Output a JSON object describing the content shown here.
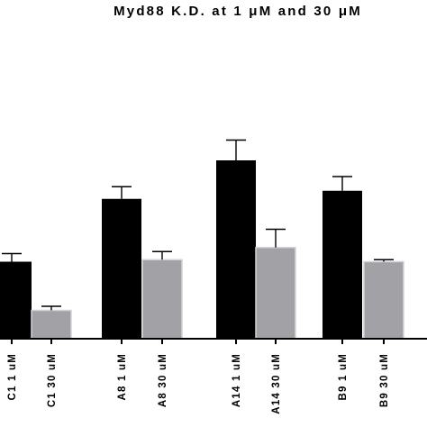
{
  "chart_data": {
    "type": "bar",
    "title": "Myd88 K.D. at 1 μM and 30 μM",
    "xlabel": "",
    "ylabel": "",
    "ylim": [
      0,
      100
    ],
    "grid": false,
    "categories": [
      "C1 1 uM",
      "C1 30 uM",
      "A8 1 uM",
      "A8 30 uM",
      "A14 1 uM",
      "A14 30 uM",
      "B9 1 uM",
      "B9 30 uM"
    ],
    "values": [
      38,
      14,
      69,
      39,
      88,
      45,
      73,
      38
    ],
    "errors": [
      4,
      2,
      6,
      4,
      10,
      9,
      7,
      1
    ],
    "colors": [
      "#000000",
      "#a2a2a6",
      "#000000",
      "#a2a2a6",
      "#000000",
      "#a2a2a6",
      "#000000",
      "#a2a2a6"
    ]
  }
}
